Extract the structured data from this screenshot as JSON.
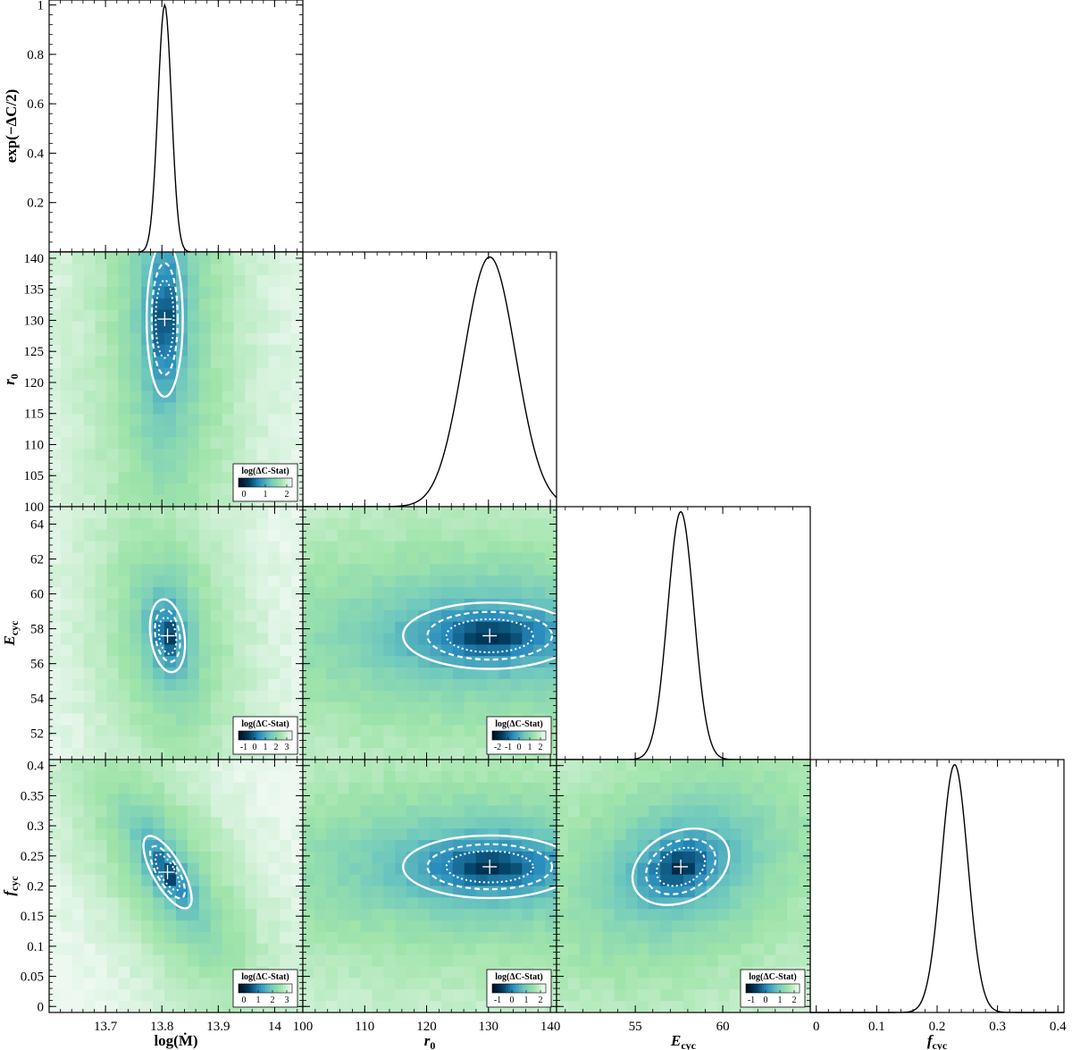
{
  "chart_data": {
    "type": "corner-plot",
    "parameters": [
      {
        "key": "logMdot",
        "label": "log(Ṁ)",
        "range": [
          13.6,
          14.05
        ],
        "ticks": [
          13.7,
          13.8,
          13.9,
          14
        ],
        "tick_labels": [
          "13.7",
          "13.8",
          "13.9",
          "14"
        ],
        "best": 13.805
      },
      {
        "key": "r0",
        "label": "r",
        "sub": "0",
        "range": [
          100,
          141
        ],
        "ticks": [
          100,
          105,
          110,
          115,
          120,
          125,
          130,
          135,
          140
        ],
        "tick_labels": [
          "100",
          "105",
          "110",
          "115",
          "120",
          "125",
          "130",
          "135",
          "140"
        ],
        "bottom_ticks": [
          100,
          110,
          120,
          130,
          140
        ],
        "bottom_tick_labels": [
          "100",
          "110",
          "120",
          "130",
          "140"
        ],
        "best": 130.2
      },
      {
        "key": "Ecyc",
        "label": "E",
        "sub": "cyc",
        "range": [
          50.5,
          65
        ],
        "ticks": [
          52,
          54,
          56,
          58,
          60,
          62,
          64
        ],
        "tick_labels": [
          "52",
          "54",
          "56",
          "58",
          "60",
          "62",
          "64"
        ],
        "bottom_ticks": [
          55,
          60
        ],
        "bottom_tick_labels": [
          "55",
          "60"
        ],
        "best": 57.6
      },
      {
        "key": "fcyc",
        "label": "f",
        "sub": "cyc",
        "range": [
          -0.01,
          0.41
        ],
        "ticks": [
          0,
          0.05,
          0.1,
          0.15,
          0.2,
          0.25,
          0.3,
          0.35,
          0.4
        ],
        "tick_labels": [
          "0",
          "0.05",
          "0.1",
          "0.15",
          "0.2",
          "0.25",
          "0.3",
          "0.35",
          "0.4"
        ],
        "bottom_ticks": [
          0,
          0.1,
          0.2,
          0.3,
          0.4
        ],
        "bottom_tick_labels": [
          "0",
          "0.1",
          "0.2",
          "0.3",
          "0.4"
        ],
        "best": 0.232
      }
    ],
    "profile_ylabel": "exp(−ΔC/2)",
    "profile_yticks": [
      0.2,
      0.4,
      0.6,
      0.8,
      1
    ],
    "profile_ytick_labels": [
      "0.2",
      "0.4",
      "0.6",
      "0.8",
      "1"
    ],
    "profiles": [
      {
        "param": "logMdot",
        "center": 13.805,
        "sigma": 0.012,
        "amplitude": 1.0
      },
      {
        "param": "r0",
        "center": 130.2,
        "sigma": 4.2,
        "amplitude": 1.0
      },
      {
        "param": "Ecyc",
        "center": 57.6,
        "sigma": 0.75,
        "amplitude": 1.0
      },
      {
        "param": "fcyc",
        "center": 0.229,
        "sigma": 0.022,
        "amplitude": 1.0
      }
    ],
    "contour_panels": [
      {
        "x": "logMdot",
        "y": "r0",
        "center": [
          13.805,
          130.2
        ],
        "semi_axes": [
          0.032,
          12.5
        ],
        "angle_deg": 0,
        "colorbar": {
          "title": "log(ΔC-Stat)",
          "tick_labels": [
            "0",
            "1",
            "2"
          ]
        }
      },
      {
        "x": "logMdot",
        "y": "Ecyc",
        "center": [
          13.81,
          57.6
        ],
        "semi_axes": [
          0.03,
          2.1
        ],
        "angle_deg": 8,
        "colorbar": {
          "title": "log(ΔC-Stat)",
          "tick_labels": [
            "-1",
            "0",
            "1",
            "2",
            "3"
          ]
        }
      },
      {
        "x": "r0",
        "y": "Ecyc",
        "center": [
          130.2,
          57.6
        ],
        "semi_axes": [
          14,
          1.9
        ],
        "angle_deg": 0,
        "colorbar": {
          "title": "log(ΔC-Stat)",
          "tick_labels": [
            "-2",
            "-1",
            "0",
            "1",
            "2"
          ]
        }
      },
      {
        "x": "logMdot",
        "y": "fcyc",
        "center": [
          13.81,
          0.223
        ],
        "semi_axes": [
          0.026,
          0.068
        ],
        "angle_deg": 30,
        "colorbar": {
          "title": "log(ΔC-Stat)",
          "tick_labels": [
            "0",
            "1",
            "2",
            "3"
          ]
        }
      },
      {
        "x": "r0",
        "y": "fcyc",
        "center": [
          130.2,
          0.232
        ],
        "semi_axes": [
          14,
          0.052
        ],
        "angle_deg": 0,
        "colorbar": {
          "title": "log(ΔC-Stat)",
          "tick_labels": [
            "-1",
            "0",
            "1",
            "2"
          ]
        }
      },
      {
        "x": "Ecyc",
        "y": "fcyc",
        "center": [
          57.6,
          0.232
        ],
        "semi_axes": [
          2.9,
          0.058
        ],
        "angle_deg": 25,
        "colorbar": {
          "title": "log(ΔC-Stat)",
          "tick_labels": [
            "-1",
            "0",
            "1",
            "2"
          ]
        }
      }
    ],
    "contour_levels": [
      "solid",
      "dashed",
      "dotted"
    ],
    "colors": {
      "background_low": "#e8f5ec",
      "mid": "#9ee3a3",
      "teal": "#3aa5c4",
      "dark": "#001428",
      "contour": "#ffffff",
      "line": "#000000"
    },
    "grid": false
  }
}
